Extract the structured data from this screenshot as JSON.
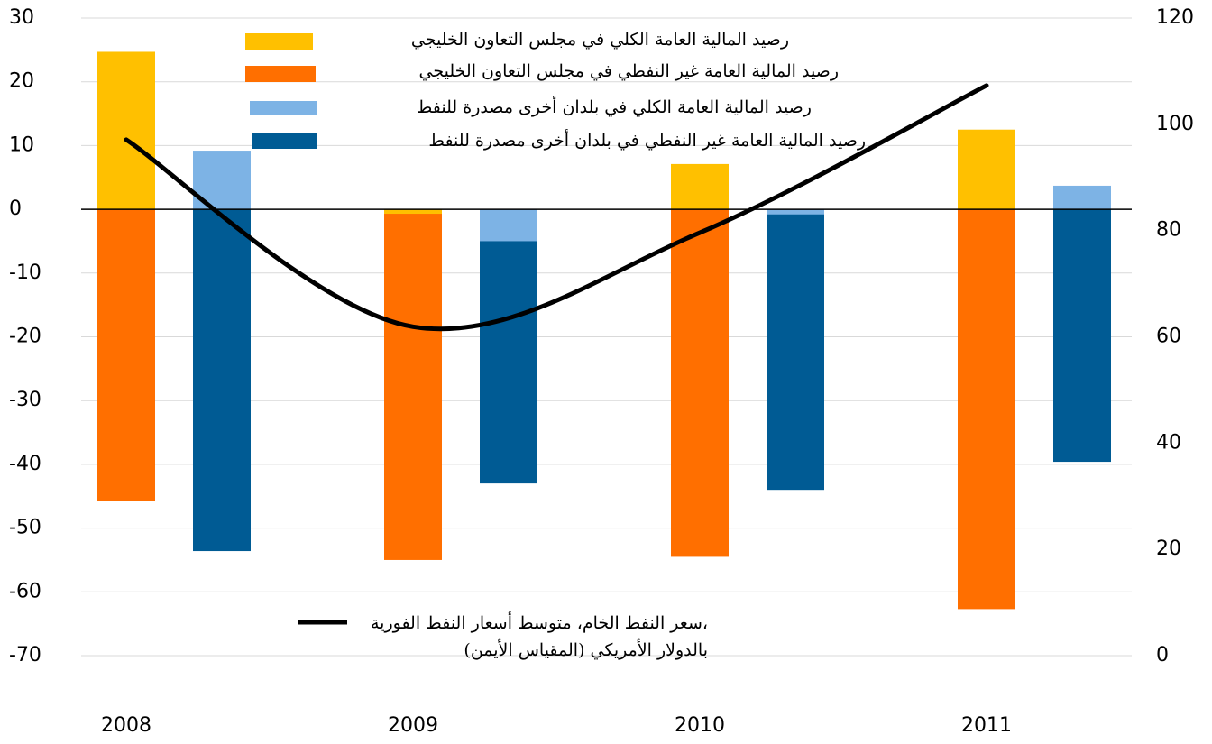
{
  "chart_data": {
    "type": "bar",
    "categories": [
      "2008",
      "2009",
      "2010",
      "2011"
    ],
    "ylim": [
      -70,
      30
    ],
    "yticks": [
      -70,
      -60,
      -50,
      -40,
      -30,
      -20,
      -10,
      0,
      10,
      20,
      30
    ],
    "y2lim": [
      0,
      120
    ],
    "y2ticks": [
      0,
      20,
      40,
      60,
      80,
      100,
      120
    ],
    "grid": true,
    "series": [
      {
        "name": "رصيد المالية العامة غير النفطي في مجلس التعاون الخليجي",
        "color": "#ff6f00",
        "group": 0,
        "values": [
          -45.8,
          -55,
          -54.5,
          -62.7
        ]
      },
      {
        "name": "رصيد المالية العامة الكلي في مجلس التعاون الخليجي",
        "color": "#ffc000",
        "group": 0,
        "values": [
          24.7,
          -0.7,
          7.1,
          12.5
        ]
      },
      {
        "name": "رصيد المالية العامة غير النفطي في بلدان أخرى مصدرة للنفط",
        "color": "#005b94",
        "group": 1,
        "values": [
          -53.6,
          -43.0,
          -44.0,
          -39.6
        ]
      },
      {
        "name": "رصيد المالية العامة الكلي في بلدان أخرى مصدرة للنفط",
        "color": "#7db3e5",
        "group": 1,
        "values": [
          9.2,
          -5.0,
          -0.8,
          3.7
        ]
      },
      {
        "name": [
          "سعر النفط الخام، متوسط أسعار النفط الفورية،",
          "بالدولار الأمريكي (المقياس الأيمن)"
        ],
        "color": "#000000",
        "type": "line",
        "axis": "y2",
        "values": [
          97.1,
          61.9,
          79.6,
          107.3
        ]
      }
    ]
  }
}
